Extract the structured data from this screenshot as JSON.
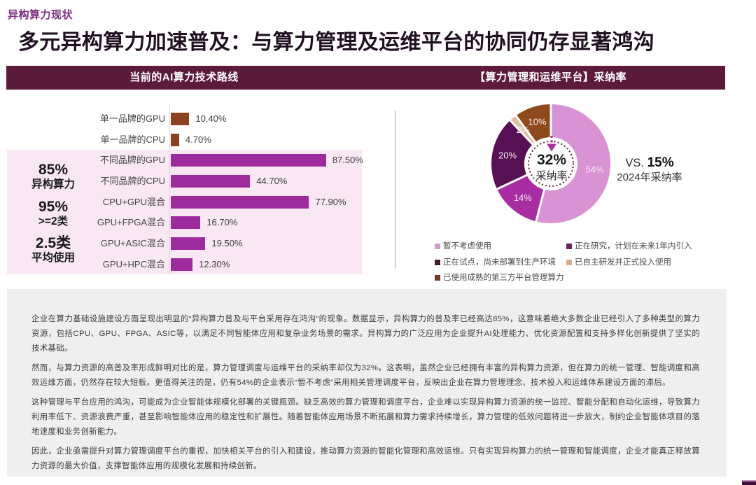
{
  "page": {
    "eyebrow": "异构算力现状",
    "title": "多元异构算力加速普及：与算力管理及运维平台的协同仍存显著鸿沟"
  },
  "colors": {
    "header_strip": "#5C1B3C",
    "eyebrow": "#7E2C80",
    "bar_purple": "#9E2B9E",
    "bar_brown": "#8C4120",
    "highlight_band": "#F9E6F4",
    "panel_gray": "#EFEFEF"
  },
  "chart_data": [
    {
      "type": "bar",
      "title": "当前的AI算力技术路线",
      "orientation": "horizontal",
      "categories": [
        "单一品牌的GPU",
        "单一品牌的CPU",
        "不同品牌的GPU",
        "不同品牌的CPU",
        "CPU+GPU混合",
        "GPU+FPGA混合",
        "GPU+ASIC混合",
        "GPU+HPC混合"
      ],
      "values": [
        10.4,
        4.7,
        87.5,
        44.7,
        77.9,
        16.7,
        19.5,
        12.3
      ],
      "value_labels": [
        "10.40%",
        "4.70%",
        "87.50%",
        "44.70%",
        "77.90%",
        "16.70%",
        "19.50%",
        "12.30%"
      ],
      "bar_colors": [
        "#8C4120",
        "#8C4120",
        "#9E2B9E",
        "#9E2B9E",
        "#9E2B9E",
        "#9E2B9E",
        "#9E2B9E",
        "#9E2B9E"
      ],
      "xlim": [
        0,
        100
      ],
      "highlighted_rows": [
        2,
        3,
        4,
        5,
        6,
        7
      ]
    },
    {
      "type": "donut",
      "title": "【算力管理和运维平台】采纳率",
      "slices": [
        {
          "label": "暂不考虑使用",
          "value": 54,
          "display": "54%",
          "color": "#D992D4",
          "legend_color": "#CF9DC9"
        },
        {
          "label": "正在研究，计划在未来1年内引入",
          "value": 14,
          "display": "14%",
          "color": "#A82CA2",
          "legend_color": "#6C2162"
        },
        {
          "label": "正在试点，尚未部署到生产环境",
          "value": 20,
          "display": "20%",
          "color": "#561053",
          "legend_color": "#421B33"
        },
        {
          "label": "已自主研发并正式投入使用",
          "value": 2,
          "display": "2%",
          "color": "#E3BD9E",
          "legend_color": "#D7AD8C"
        },
        {
          "label": "已使用成熟的第三方平台管理算力",
          "value": 10,
          "display": "10%",
          "color": "#8E4A1D",
          "legend_color": "#713D22"
        }
      ],
      "center": {
        "value": "32%",
        "caption": "采纳率"
      },
      "comparison": {
        "prefix": "VS. ",
        "value": "15%",
        "caption": "2024年采纳率"
      }
    }
  ],
  "stats": [
    {
      "value": "85%",
      "caption": "异构算力"
    },
    {
      "value": "95%",
      "caption": ">=2类"
    },
    {
      "value": "2.5类",
      "caption": "平均使用"
    }
  ],
  "paragraphs": [
    "企业在算力基础设施建设方面呈现出明显的“异构算力普及与平台采用存在鸿沟”的现象。数据显示，异构算力的普及率已经高达85%，这意味着绝大多数企业已经引入了多种类型的算力资源，包括CPU、GPU、FPGA、ASIC等，以满足不同智能体应用和复杂业务场景的需求。异构算力的广泛应用为企业提升AI处理能力、优化资源配置和支持多样化创新提供了坚实的技术基础。",
    "然而，与算力资源的高普及率形成鲜明对比的是，算力管理调度与运维平台的采纳率却仅为32%。这表明，虽然企业已经拥有丰富的异构算力资源，但在算力的统一管理、智能调度和高效运维方面，仍然存在较大短板。更值得关注的是，仍有54%的企业表示“暂不考虑”采用相关管理调度平台，反映出企业在算力管理理念、技术投入和运维体系建设方面的滞后。",
    "这种管理与平台应用的鸿沟，可能成为企业智能体规模化部署的关键瓶颈。缺乏高效的算力管理和调度平台，企业难以实现异构算力资源的统一监控、智能分配和自动化运维，导致算力利用率低下、资源浪费严重，甚至影响智能体应用的稳定性和扩展性。随着智能体应用场景不断拓展和算力需求持续增长，算力管理的低效问题将进一步放大，制约企业智能体项目的落地速度和业务创新能力。",
    "因此，企业亟需提升对算力管理调度平台的重视，加快相关平台的引入和建设，推动算力资源的智能化管理和高效运维。只有实现异构算力的统一管理和智能调度，企业才能真正释放算力资源的最大价值，支撑智能体应用的规模化发展和持续创新。"
  ]
}
